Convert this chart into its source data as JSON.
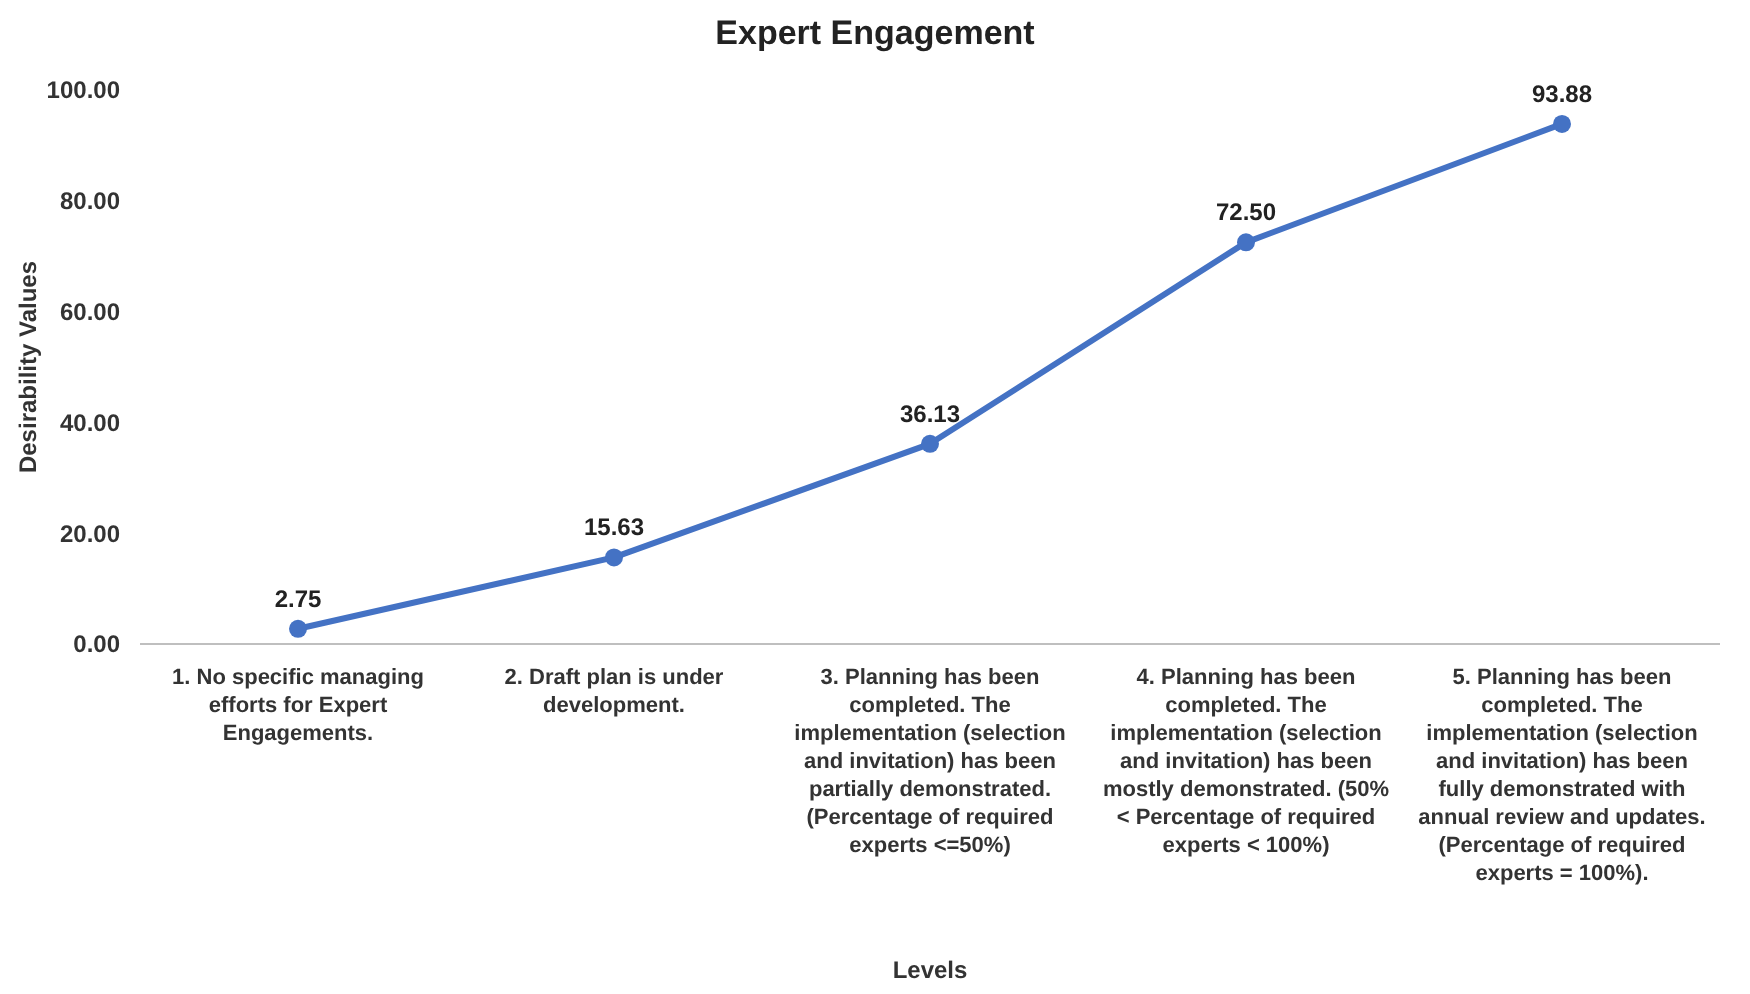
{
  "chart_data": {
    "type": "line",
    "title": "Expert Engagement",
    "xlabel": "Levels",
    "ylabel": "Desirability Values",
    "categories": [
      "1. No specific managing efforts for Expert Engagements.",
      "2. Draft plan is under development.",
      "3. Planning has been completed. The implementation (selection and invitation) has been partially demonstrated. (Percentage of required experts <=50%)",
      "4. Planning has been completed. The implementation (selection and invitation) has been mostly demonstrated. (50% < Percentage of required experts < 100%)",
      "5. Planning has been completed. The implementation (selection and invitation) has been fully demonstrated with annual review and updates. (Percentage of required experts = 100%)."
    ],
    "series": [
      {
        "color": "#4472c4",
        "values": [
          2.75,
          15.63,
          36.13,
          72.5,
          93.88
        ],
        "value_labels": [
          "2.75",
          "15.63",
          "36.13",
          "72.50",
          "93.88"
        ]
      }
    ],
    "ylim": [
      0,
      100
    ],
    "yticks": [
      {
        "value": 0,
        "label": "0.00"
      },
      {
        "value": 20,
        "label": "20.00"
      },
      {
        "value": 40,
        "label": "40.00"
      },
      {
        "value": 60,
        "label": "60.00"
      },
      {
        "value": 80,
        "label": "80.00"
      },
      {
        "value": 100,
        "label": "100.00"
      }
    ],
    "marker": "circle",
    "line_style": "solid"
  }
}
